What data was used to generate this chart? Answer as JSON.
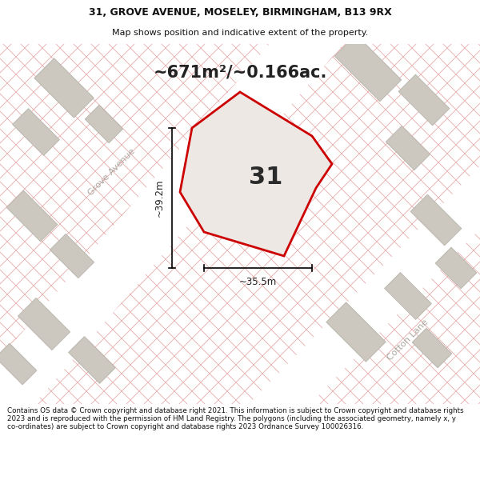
{
  "title_line1": "31, GROVE AVENUE, MOSELEY, BIRMINGHAM, B13 9RX",
  "title_line2": "Map shows position and indicative extent of the property.",
  "area_label": "~671m²/~0.166ac.",
  "plot_number": "31",
  "dim_width": "~35.5m",
  "dim_height": "~39.2m",
  "footer_text": "Contains OS data © Crown copyright and database right 2021. This information is subject to Crown copyright and database rights 2023 and is reproduced with the permission of HM Land Registry. The polygons (including the associated geometry, namely x, y co-ordinates) are subject to Crown copyright and database rights 2023 Ordnance Survey 100026316.",
  "bg_color": "#f2ebe8",
  "hatch_line_color": "#e8aaaa",
  "building_color": "#ccc8c0",
  "building_outline": "#bbb8b0",
  "road_color": "#ffffff",
  "plot_fill": "#ede8e4",
  "plot_outline": "#cc0000",
  "street_label_color": "#aaa8a0",
  "title_color": "#111111",
  "footer_color": "#111111",
  "footer_bg": "#ffffff",
  "title_bg": "#ffffff"
}
